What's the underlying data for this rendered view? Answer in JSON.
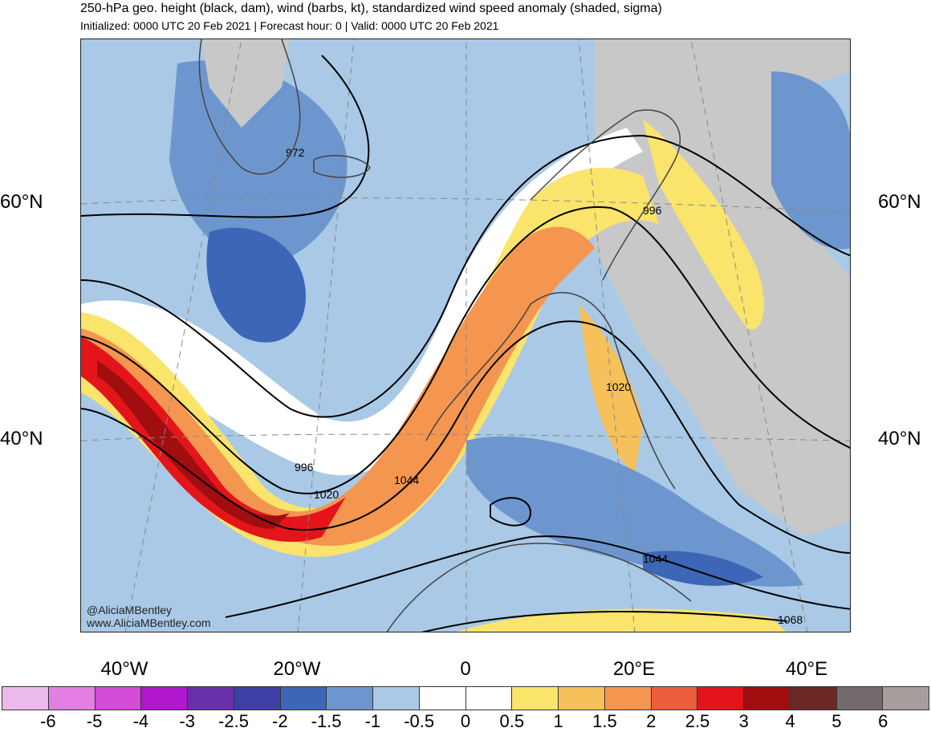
{
  "header": {
    "title": "250-hPa geo. height (black, dam), wind (barbs, kt), standardized wind speed anomaly (shaded, sigma)",
    "subtitle": "Initialized: 0000 UTC 20 Feb 2021 | Forecast hour: 0 | Valid: 0000 UTC 20 Feb 2021"
  },
  "map": {
    "lat_labels": [
      "60°N",
      "40°N"
    ],
    "lon_labels": [
      "40°W",
      "20°W",
      "0",
      "20°E",
      "40°E"
    ],
    "contour_labels": [
      "972",
      "996",
      "996",
      "1020",
      "1020",
      "1044",
      "1044",
      "1068"
    ],
    "credit_handle": "@AliciaMBentley",
    "credit_url": "www.AliciaMBentley.com"
  },
  "colorbar": {
    "ticks": [
      "-6",
      "-5",
      "-4",
      "-3",
      "-2.5",
      "-2",
      "-1.5",
      "-1",
      "-0.5",
      "0",
      "0.5",
      "1",
      "1.5",
      "2",
      "2.5",
      "3",
      "4",
      "5",
      "6"
    ],
    "colors": [
      "#ebb9ea",
      "#e37fe3",
      "#d54cd9",
      "#b117cc",
      "#6a2faa",
      "#3d3fa5",
      "#3d66b7",
      "#6e96ce",
      "#a9c9e6",
      "#ffffff",
      "#ffffff",
      "#fbe46b",
      "#f6c15a",
      "#f49550",
      "#ee5d3b",
      "#e3151b",
      "#a10e10",
      "#6b2a26",
      "#736b6b",
      "#a89d9d"
    ]
  }
}
